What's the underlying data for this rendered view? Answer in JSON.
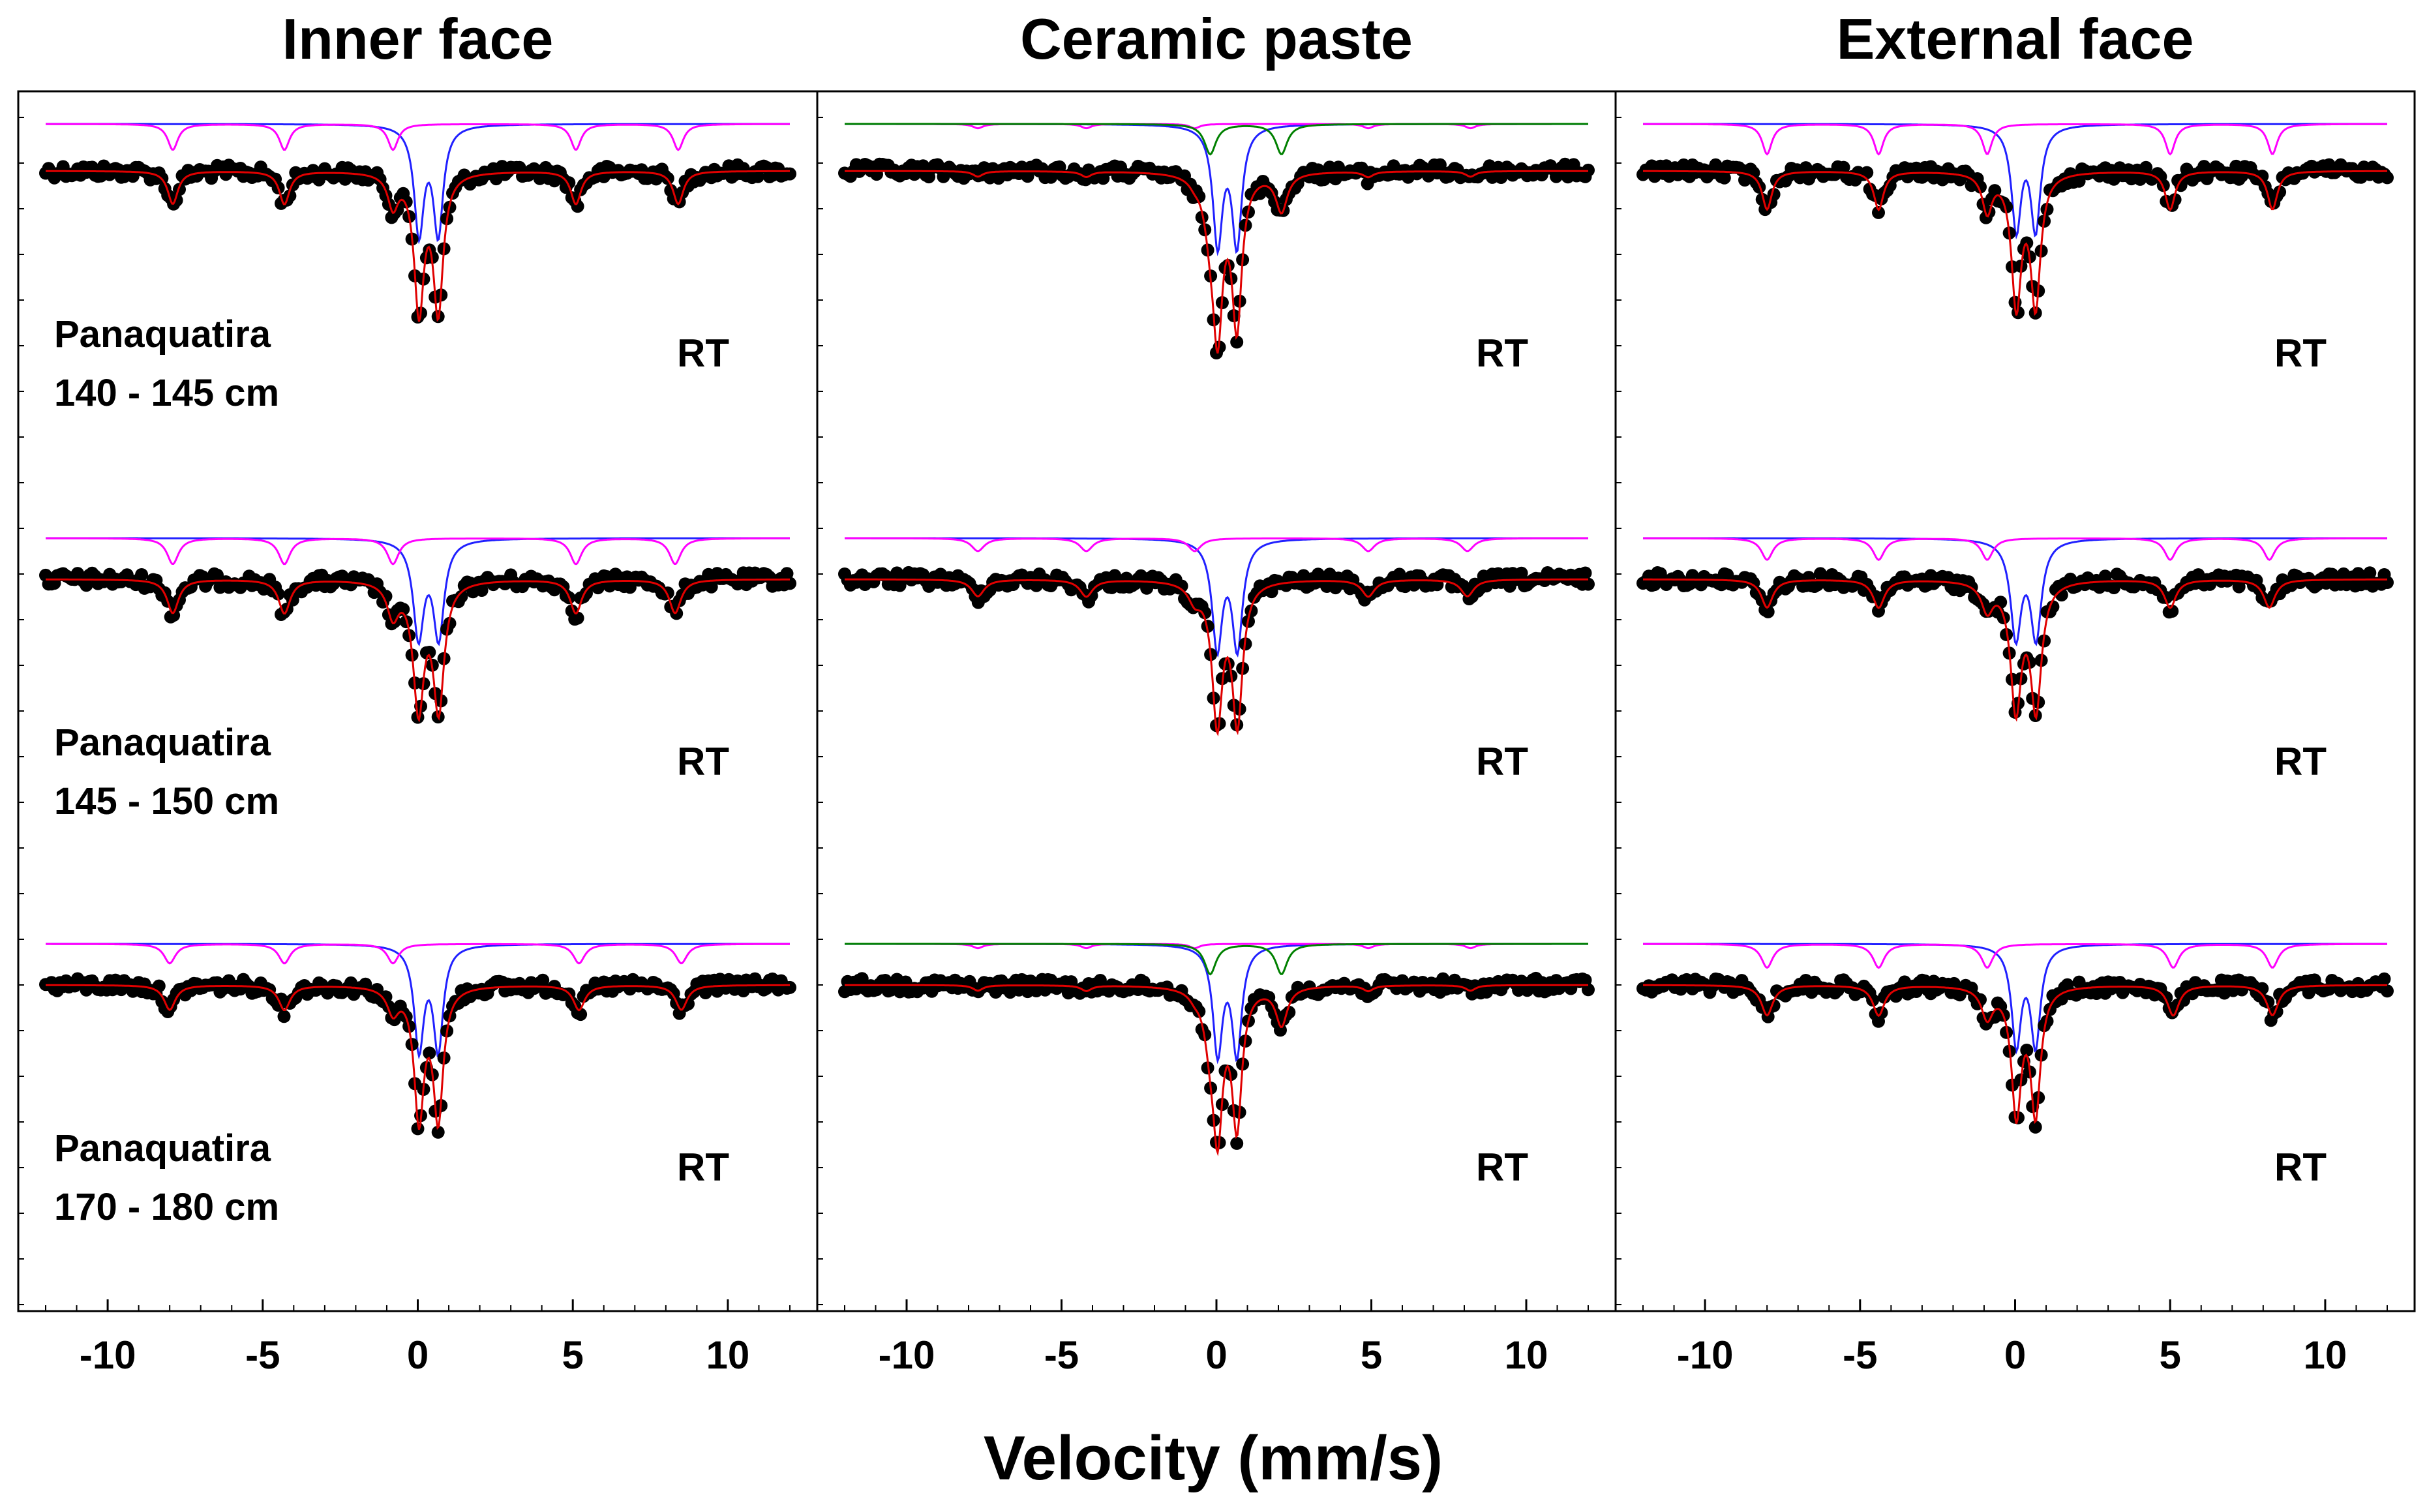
{
  "figure": {
    "xlabel": "Velocity (mm/s)"
  },
  "chart_data": {
    "type": "line",
    "title": "",
    "xlabel": "Velocity (mm/s)",
    "ylabel": "",
    "xlim": [
      -12,
      12
    ],
    "x_ticks": [
      -10,
      -5,
      0,
      5,
      10
    ],
    "grid": false,
    "legend": "none",
    "series_colors": {
      "data": "#000000",
      "total_fit": "#e00000",
      "doublet": "#2020ff",
      "sextet": "#ff00ff",
      "doublet_2": "#008000"
    },
    "columns": [
      {
        "title": "Inner face",
        "rows": [
          {
            "label_line1": "Panaquatira",
            "label_line2": "140 - 145 cm",
            "temperature": "RT",
            "doublet": {
              "center": 0.35,
              "split": 0.62,
              "width": 0.38,
              "depth": 0.5
            },
            "sextet": {
              "lines": [
                -7.9,
                -4.3,
                -0.8,
                5.1,
                8.4
              ],
              "depth": 0.12,
              "width": 0.4
            },
            "doublet_2": null
          },
          {
            "label_line1": "Panaquatira",
            "label_line2": "145 - 150 cm",
            "temperature": "RT",
            "doublet": {
              "center": 0.35,
              "split": 0.65,
              "width": 0.42,
              "depth": 0.45
            },
            "sextet": {
              "lines": [
                -7.9,
                -4.3,
                -0.8,
                5.1,
                8.3
              ],
              "depth": 0.12,
              "width": 0.45
            },
            "doublet_2": null
          },
          {
            "label_line1": "Panaquatira",
            "label_line2": "170 - 180 cm",
            "temperature": "RT",
            "doublet": {
              "center": 0.35,
              "split": 0.62,
              "width": 0.38,
              "depth": 0.48
            },
            "sextet": {
              "lines": [
                -8.0,
                -4.3,
                -0.8,
                5.2,
                8.5
              ],
              "depth": 0.09,
              "width": 0.45
            },
            "doublet_2": null
          }
        ]
      },
      {
        "title": "Ceramic paste",
        "rows": [
          {
            "label_line1": "",
            "label_line2": "",
            "temperature": "RT",
            "doublet": {
              "center": 0.35,
              "split": 0.62,
              "width": 0.38,
              "depth": 0.55
            },
            "sextet": {
              "lines": [
                -7.7,
                -4.2,
                -0.7,
                4.9,
                8.2
              ],
              "depth": 0.02,
              "width": 0.4
            },
            "doublet_2": {
              "center": 0.95,
              "split": 2.3,
              "width": 0.45,
              "depth": 0.14
            }
          },
          {
            "label_line1": "",
            "label_line2": "",
            "temperature": "RT",
            "doublet": {
              "center": 0.35,
              "split": 0.65,
              "width": 0.4,
              "depth": 0.5
            },
            "sextet": {
              "lines": [
                -7.7,
                -4.2,
                -0.7,
                4.9,
                8.1
              ],
              "depth": 0.06,
              "width": 0.5
            },
            "doublet_2": null
          },
          {
            "label_line1": "",
            "label_line2": "",
            "temperature": "RT",
            "doublet": {
              "center": 0.35,
              "split": 0.62,
              "width": 0.38,
              "depth": 0.5
            },
            "sextet": {
              "lines": [
                -7.7,
                -4.2,
                -0.7,
                4.9,
                8.2
              ],
              "depth": 0.02,
              "width": 0.4
            },
            "doublet_2": {
              "center": 0.95,
              "split": 2.3,
              "width": 0.45,
              "depth": 0.14
            }
          }
        ]
      },
      {
        "title": "External face",
        "rows": [
          {
            "label_line1": "",
            "label_line2": "",
            "temperature": "RT",
            "doublet": {
              "center": 0.35,
              "split": 0.62,
              "width": 0.38,
              "depth": 0.48
            },
            "sextet": {
              "lines": [
                -8.0,
                -4.4,
                -0.9,
                5.0,
                8.3
              ],
              "depth": 0.14,
              "width": 0.38
            },
            "doublet_2": null
          },
          {
            "label_line1": "",
            "label_line2": "",
            "temperature": "RT",
            "doublet": {
              "center": 0.35,
              "split": 0.65,
              "width": 0.42,
              "depth": 0.45
            },
            "sextet": {
              "lines": [
                -8.0,
                -4.4,
                -0.9,
                5.0,
                8.2
              ],
              "depth": 0.1,
              "width": 0.45
            },
            "doublet_2": null
          },
          {
            "label_line1": "",
            "label_line2": "",
            "temperature": "RT",
            "doublet": {
              "center": 0.35,
              "split": 0.62,
              "width": 0.38,
              "depth": 0.46
            },
            "sextet": {
              "lines": [
                -8.0,
                -4.4,
                -0.9,
                5.1,
                8.3
              ],
              "depth": 0.11,
              "width": 0.45
            },
            "doublet_2": null
          }
        ]
      }
    ]
  }
}
